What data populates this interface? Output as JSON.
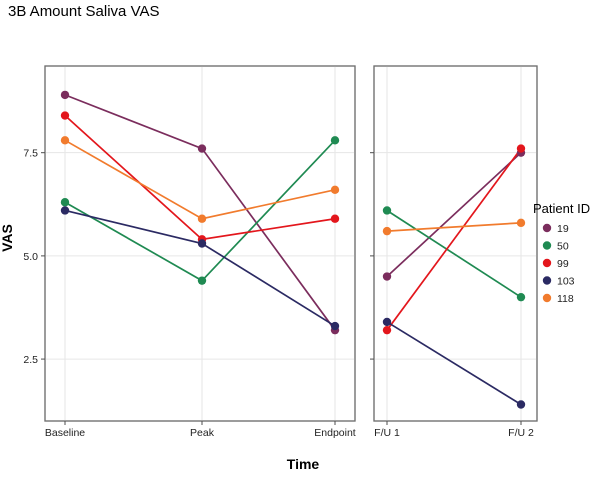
{
  "chart_data": {
    "type": "line",
    "title": "3B Amount Saliva VAS",
    "xlabel": "Time",
    "ylabel": "VAS",
    "ylim": [
      1.0,
      9.6
    ],
    "yticks": [
      2.5,
      5.0,
      7.5
    ],
    "ytick_labels": [
      "2.5",
      "5.0",
      "7.5"
    ],
    "grid": true,
    "legend_position": "right",
    "legend_title": "Patient ID",
    "panels": [
      {
        "name": "main",
        "categories": [
          "Baseline",
          "Peak",
          "Endpoint"
        ]
      },
      {
        "name": "follow-up",
        "categories": [
          "F/U 1",
          "F/U 2"
        ]
      }
    ],
    "series": [
      {
        "name": "19",
        "color": "#7b2d5d",
        "values": [
          8.9,
          7.6,
          3.2
        ],
        "followup": [
          4.5,
          7.5
        ]
      },
      {
        "name": "50",
        "color": "#1f8a52",
        "values": [
          6.3,
          4.4,
          7.8
        ],
        "followup": [
          6.1,
          4.0
        ]
      },
      {
        "name": "99",
        "color": "#e3161c",
        "values": [
          8.4,
          5.4,
          5.9
        ],
        "followup": [
          3.2,
          7.6
        ]
      },
      {
        "name": "103",
        "color": "#2b2a63",
        "values": [
          6.1,
          5.3,
          3.3
        ],
        "followup": [
          3.4,
          1.4
        ]
      },
      {
        "name": "118",
        "color": "#f17b2d",
        "values": [
          7.8,
          5.9,
          6.6
        ],
        "followup": [
          5.6,
          5.8
        ]
      }
    ]
  }
}
